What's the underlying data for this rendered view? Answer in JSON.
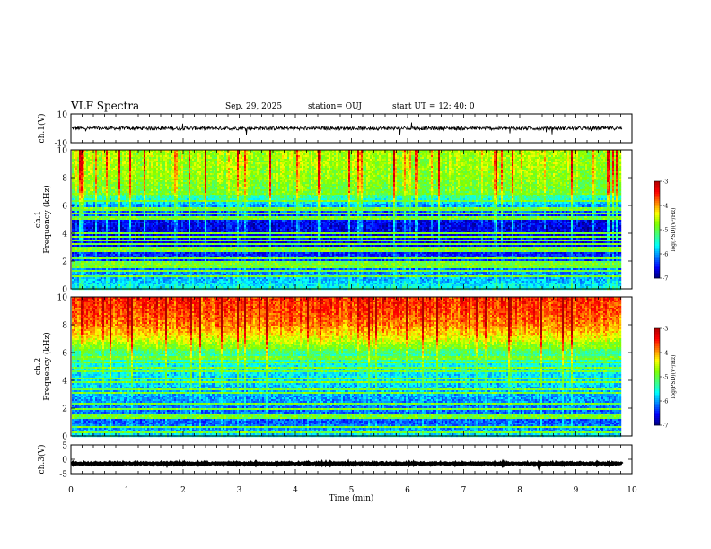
{
  "header": {
    "title": "VLF Spectra",
    "date": "Sep. 29, 2025",
    "station": "station= OUJ",
    "start": "start  UT =   12: 40: 0"
  },
  "chart_data": [
    {
      "type": "line",
      "panel": "ch1-waveform",
      "ylabel": "ch.1(V)",
      "ylim": [
        -10,
        10
      ],
      "yticks": [
        "10",
        "-10"
      ],
      "baseline": 0,
      "noise_amplitude": 1.2
    },
    {
      "type": "heatmap",
      "panel": "ch1-spectrogram",
      "ylabel_line1": "ch.1",
      "ylabel_line2": "Frequency (kHz)",
      "ylim": [
        0,
        10
      ],
      "yticks": [
        "0",
        "2",
        "4",
        "6",
        "8",
        "10"
      ],
      "colorbar_label": "log(PSD)(V²/Hz)",
      "colorbar_range": [
        -7,
        -3
      ],
      "colorbar_ticks": [
        "-3",
        "-4",
        "-5",
        "-6",
        "-7"
      ],
      "profile": [
        {
          "f": 0.0,
          "v": -5.6
        },
        {
          "f": 0.5,
          "v": -5.9
        },
        {
          "f": 1.0,
          "v": -6.1
        },
        {
          "f": 2.0,
          "v": -6.4
        },
        {
          "f": 3.0,
          "v": -6.6
        },
        {
          "f": 4.0,
          "v": -6.8
        },
        {
          "f": 5.0,
          "v": -6.7
        },
        {
          "f": 6.0,
          "v": -6.1
        },
        {
          "f": 7.0,
          "v": -5.1
        },
        {
          "f": 8.0,
          "v": -5.0
        },
        {
          "f": 9.0,
          "v": -4.9
        },
        {
          "f": 10.0,
          "v": -4.9
        }
      ]
    },
    {
      "type": "heatmap",
      "panel": "ch2-spectrogram",
      "ylabel_line1": "ch.2",
      "ylabel_line2": "Frequency (kHz)",
      "ylim": [
        0,
        10
      ],
      "yticks": [
        "0",
        "2",
        "4",
        "6",
        "8",
        "10"
      ],
      "colorbar_label": "log(PSD)(V²/Hz)",
      "colorbar_range": [
        -7,
        -3
      ],
      "colorbar_ticks": [
        "-3",
        "-4",
        "-5",
        "-6",
        "-7"
      ],
      "profile": [
        {
          "f": 0.0,
          "v": -5.7
        },
        {
          "f": 0.5,
          "v": -6.1
        },
        {
          "f": 1.0,
          "v": -6.3
        },
        {
          "f": 2.0,
          "v": -6.2
        },
        {
          "f": 3.0,
          "v": -6.0
        },
        {
          "f": 4.0,
          "v": -5.9
        },
        {
          "f": 5.0,
          "v": -5.8
        },
        {
          "f": 6.0,
          "v": -5.4
        },
        {
          "f": 7.0,
          "v": -4.6
        },
        {
          "f": 8.0,
          "v": -4.1
        },
        {
          "f": 9.0,
          "v": -3.9
        },
        {
          "f": 10.0,
          "v": -3.8
        }
      ]
    },
    {
      "type": "line",
      "panel": "ch3-waveform",
      "ylabel": "ch.3(V)",
      "ylim": [
        -5,
        5
      ],
      "yticks": [
        "5",
        "0",
        "-5"
      ],
      "baseline": -1.5,
      "noise_amplitude": 0.2
    }
  ],
  "x_axis": {
    "label": "Time  (min)",
    "range": [
      0,
      10
    ],
    "ticks": [
      "0",
      "1",
      "2",
      "3",
      "4",
      "5",
      "6",
      "7",
      "8",
      "9",
      "10"
    ],
    "data_end": 9.83
  },
  "colormap": [
    "#00007f",
    "#0000ff",
    "#0080ff",
    "#00ffff",
    "#40ff80",
    "#80ff00",
    "#ffff00",
    "#ff8000",
    "#ff0000",
    "#b00000"
  ]
}
